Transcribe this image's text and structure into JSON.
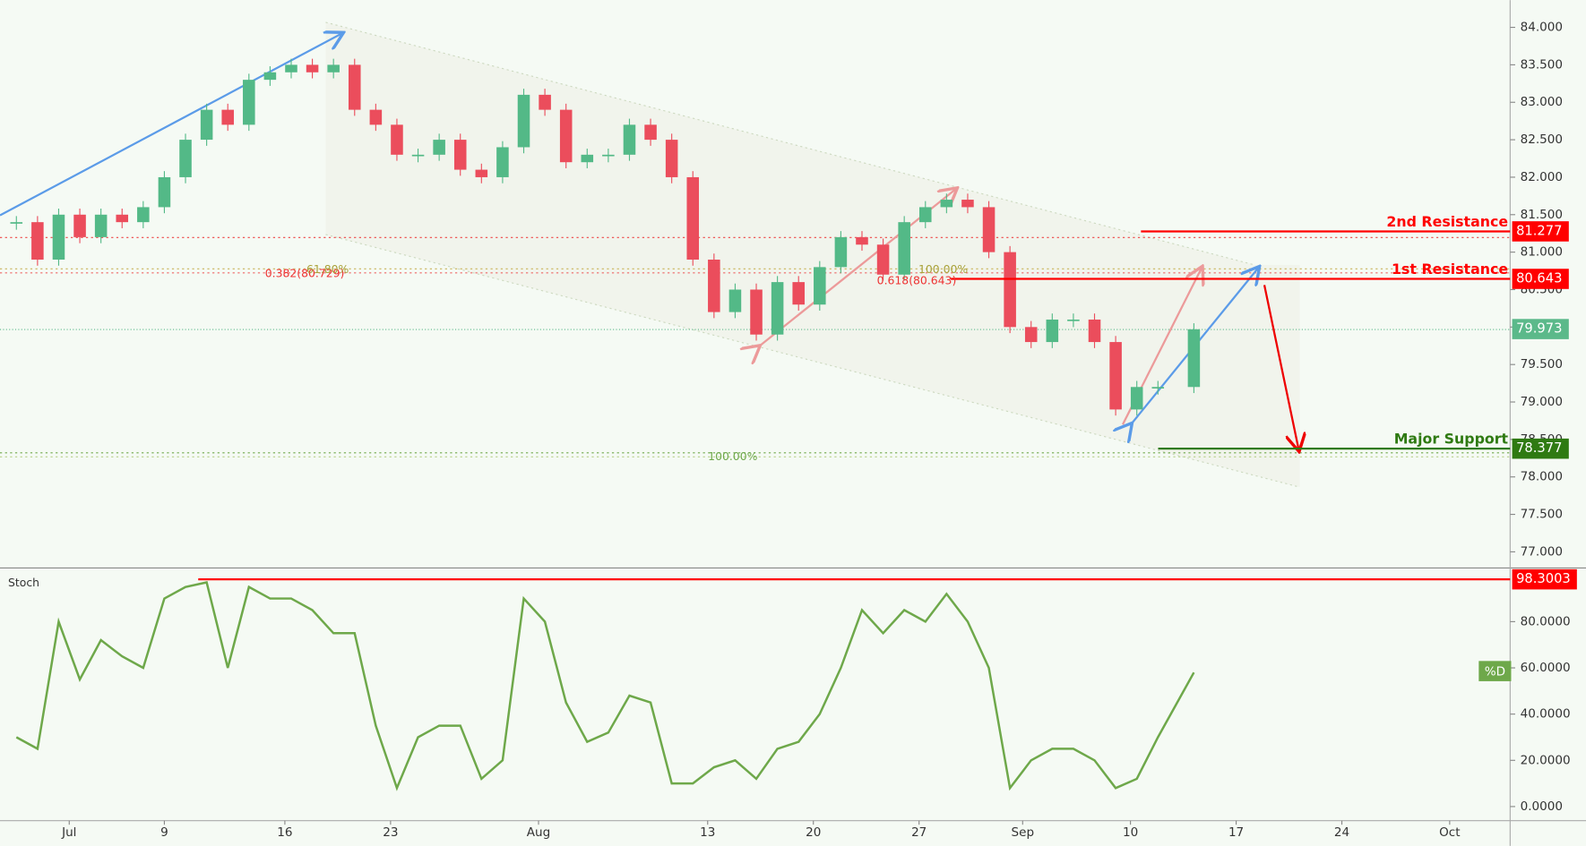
{
  "chart_data": [
    {
      "type": "candlestick",
      "x": [
        -2,
        -1,
        0,
        1,
        2,
        3,
        4,
        5,
        6,
        7,
        8,
        9,
        10,
        11,
        12,
        13,
        14,
        15,
        16,
        17,
        18,
        19,
        20,
        21,
        22,
        23,
        24,
        25,
        26,
        27,
        28,
        29,
        30,
        31,
        32,
        33,
        34,
        35,
        36,
        37,
        38,
        39,
        40,
        41,
        42,
        43,
        44,
        45,
        46,
        47,
        48,
        49,
        50,
        51,
        52,
        53.7
      ],
      "close": [
        81.4,
        80.9,
        81.5,
        81.2,
        81.5,
        81.4,
        81.6,
        82.0,
        82.5,
        82.9,
        82.7,
        83.3,
        83.4,
        83.5,
        83.4,
        83.5,
        82.9,
        82.7,
        82.3,
        82.3,
        82.5,
        82.1,
        82.0,
        82.4,
        83.1,
        82.9,
        82.2,
        82.3,
        82.3,
        82.7,
        82.5,
        82.0,
        80.9,
        80.2,
        80.5,
        79.9,
        80.6,
        80.3,
        80.8,
        81.2,
        81.1,
        80.7,
        81.4,
        81.6,
        81.7,
        81.6,
        81.0,
        80.0,
        79.8,
        80.1,
        80.1,
        79.8,
        78.9,
        79.2,
        79.2,
        79.97
      ],
      "colors": {
        "up": "#53b987",
        "down": "#eb4d5c"
      },
      "xlim": [
        -2.775,
        68.66
      ],
      "ylim": [
        76.784,
        84.364
      ],
      "yticks": [
        {
          "value": 77,
          "label": "77.000"
        },
        {
          "value": 77.5,
          "label": "77.500"
        },
        {
          "value": 78,
          "label": "78.000"
        },
        {
          "value": 78.5,
          "label": "78.500"
        },
        {
          "value": 79,
          "label": "79.000"
        },
        {
          "value": 79.5,
          "label": "79.500"
        },
        {
          "value": 80,
          "label": "80.000"
        },
        {
          "value": 80.5,
          "label": "80.500"
        },
        {
          "value": 81,
          "label": "81.000"
        },
        {
          "value": 81.5,
          "label": "81.500"
        },
        {
          "value": 82,
          "label": "82.000"
        },
        {
          "value": 82.5,
          "label": "82.500"
        },
        {
          "value": 83,
          "label": "83.000"
        },
        {
          "value": 83.5,
          "label": "83.500"
        },
        {
          "value": 84,
          "label": "84.000"
        }
      ],
      "levels": [
        {
          "value": 81.277,
          "name": "2nd Resistance",
          "color": "#ff0000"
        },
        {
          "value": 80.643,
          "name": "1st Resistance",
          "color": "#ff0000"
        },
        {
          "value": 78.377,
          "name": "Major Support",
          "color": "#2f7a12"
        },
        {
          "value": 79.973,
          "color": "#5bb98a"
        }
      ],
      "fib_labels": [
        "0.382(80.729)",
        "61.80%",
        "0.618(80.643)",
        "100.00%",
        "100.00%"
      ]
    },
    {
      "type": "line",
      "title": "Stoch",
      "x": [
        -2,
        -1,
        0,
        1,
        2,
        3,
        4,
        5,
        6,
        7,
        8,
        9,
        10,
        11,
        12,
        13,
        14,
        15,
        16,
        17,
        18,
        19,
        20,
        21,
        22,
        23,
        24,
        25,
        26,
        27,
        28,
        29,
        30,
        31,
        32,
        33,
        34,
        35,
        36,
        37,
        38,
        39,
        40,
        41,
        42,
        43,
        44,
        45,
        46,
        47,
        48,
        49,
        50,
        51,
        52,
        53.7
      ],
      "series": [
        {
          "name": "%D",
          "color": "#6ea84a",
          "values": [
            30,
            25,
            80,
            55,
            72,
            65,
            60,
            90,
            95,
            97,
            60,
            95,
            90,
            90,
            85,
            75,
            75,
            35,
            8,
            30,
            35,
            35,
            12,
            20,
            90,
            80,
            45,
            28,
            32,
            48,
            45,
            10,
            10,
            17,
            20,
            12,
            25,
            28,
            40,
            60,
            85,
            75,
            85,
            80,
            92,
            80,
            60,
            8,
            20,
            25,
            25,
            20,
            8,
            12,
            30,
            58
          ]
        }
      ],
      "xlim": [
        -2.775,
        68.66
      ],
      "ylim": [
        -6.1,
        103.2
      ],
      "yticks": [
        {
          "value": 0,
          "label": "0.0000"
        },
        {
          "value": 20,
          "label": "20.0000"
        },
        {
          "value": 40,
          "label": "40.0000"
        },
        {
          "value": 60,
          "label": "60.0000"
        },
        {
          "value": 80,
          "label": "80.0000"
        }
      ],
      "levels": [
        {
          "value": 98.3003,
          "color": "#ff0000"
        }
      ],
      "xticks": [
        {
          "value": 0.5,
          "label": "Jul"
        },
        {
          "value": 5,
          "label": "9"
        },
        {
          "value": 10.7,
          "label": "16"
        },
        {
          "value": 15.7,
          "label": "23"
        },
        {
          "value": 22.7,
          "label": "Aug"
        },
        {
          "value": 30.7,
          "label": "13"
        },
        {
          "value": 35.7,
          "label": "20"
        },
        {
          "value": 40.7,
          "label": "27"
        },
        {
          "value": 45.6,
          "label": "Sep"
        },
        {
          "value": 50.7,
          "label": "10"
        },
        {
          "value": 55.7,
          "label": "17"
        },
        {
          "value": 60.7,
          "label": "24"
        },
        {
          "value": 65.8,
          "label": "Oct"
        }
      ]
    }
  ]
}
